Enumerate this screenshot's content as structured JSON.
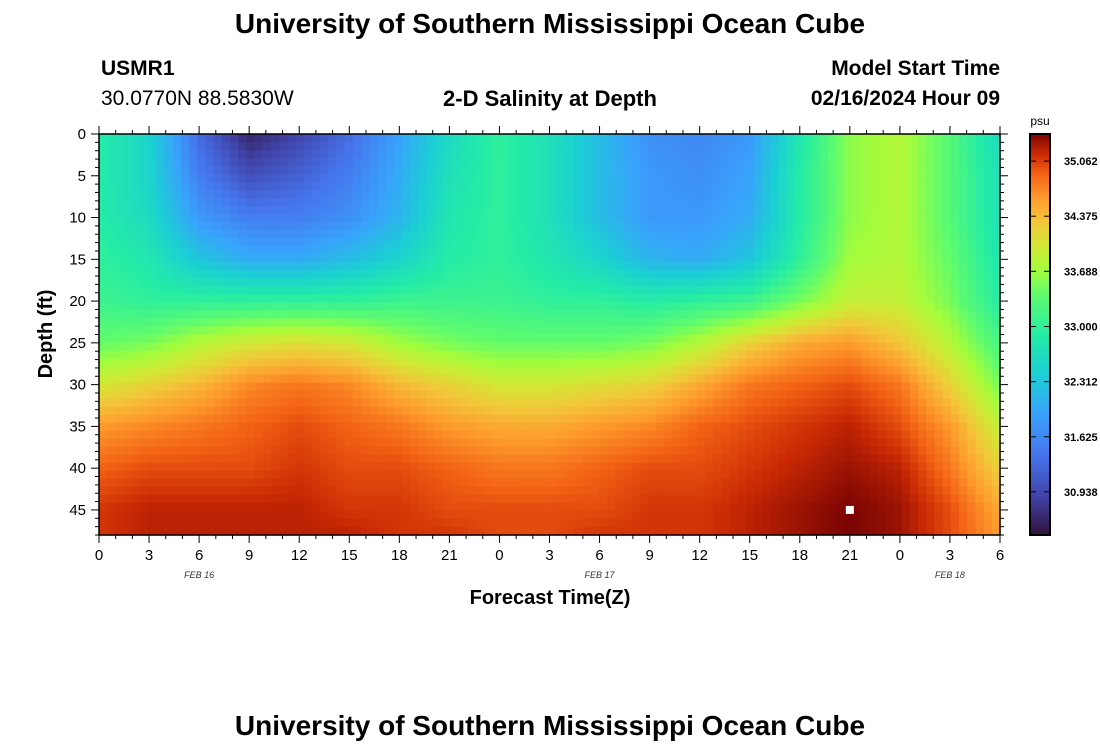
{
  "header": {
    "title": "University of Southern Mississippi Ocean Cube",
    "station_id": "USMR1",
    "coords": "30.0770N  88.5830W",
    "plot_title": "2-D Salinity at Depth",
    "model_label": "Model Start Time",
    "model_time": "02/16/2024 Hour 09"
  },
  "footer": {
    "title": "University of Southern Mississippi Ocean Cube"
  },
  "chart_data": {
    "type": "heatmap",
    "title": "2-D Salinity at Depth",
    "xlabel": "Forecast Time(Z)",
    "ylabel": "Depth (ft)",
    "x_tick_labels": [
      "0",
      "3",
      "6",
      "9",
      "12",
      "15",
      "18",
      "21",
      "0",
      "3",
      "6",
      "9",
      "12",
      "15",
      "18",
      "21",
      "0",
      "3",
      "6"
    ],
    "x_range_hours": [
      0,
      54
    ],
    "date_labels": [
      {
        "label": "FEB 16",
        "hour": 6
      },
      {
        "label": "FEB 17",
        "hour": 30
      },
      {
        "label": "FEB 18",
        "hour": 51
      }
    ],
    "y_ticks": [
      0,
      5,
      10,
      15,
      20,
      25,
      30,
      35,
      40,
      45
    ],
    "ylim": [
      0,
      48
    ],
    "y_inverted": true,
    "colorbar": {
      "unit": "psu",
      "ticks": [
        "35.062",
        "34.375",
        "33.688",
        "33.000",
        "32.312",
        "31.625",
        "30.938"
      ],
      "range": [
        30.4,
        35.4
      ]
    },
    "marker": {
      "hour": 45,
      "depth_ft": 45,
      "color": "#ffffff"
    },
    "salinity_psu": {
      "columns_hour": [
        0,
        3,
        6,
        9,
        12,
        15,
        18,
        21,
        24,
        27,
        30,
        33,
        36,
        39,
        42,
        45,
        48,
        51,
        54
      ],
      "rows_depth_ft": [
        0,
        5,
        10,
        15,
        20,
        25,
        30,
        35,
        40,
        45,
        48
      ],
      "values": [
        [
          32.9,
          32.5,
          31.3,
          30.6,
          30.9,
          31.3,
          31.9,
          32.6,
          33.0,
          32.7,
          32.2,
          31.7,
          31.6,
          31.8,
          32.8,
          33.6,
          33.8,
          33.3,
          32.6
        ],
        [
          32.9,
          32.5,
          31.5,
          31.0,
          31.2,
          31.5,
          32.0,
          32.7,
          33.0,
          32.7,
          32.2,
          31.8,
          31.7,
          31.9,
          32.9,
          33.6,
          33.8,
          33.3,
          32.7
        ],
        [
          32.9,
          32.6,
          31.8,
          31.5,
          31.5,
          31.7,
          32.1,
          32.8,
          33.0,
          32.7,
          32.2,
          31.8,
          31.8,
          32.0,
          32.9,
          33.6,
          33.8,
          33.3,
          32.7
        ],
        [
          33.0,
          32.8,
          32.3,
          32.0,
          32.0,
          32.2,
          32.5,
          32.9,
          33.0,
          32.8,
          32.5,
          32.1,
          32.0,
          32.3,
          33.0,
          33.7,
          33.8,
          33.4,
          32.8
        ],
        [
          33.1,
          33.0,
          33.0,
          33.0,
          33.0,
          33.0,
          33.1,
          33.1,
          33.1,
          33.0,
          33.0,
          32.9,
          33.0,
          33.1,
          33.5,
          33.9,
          33.9,
          33.5,
          32.9
        ],
        [
          33.4,
          33.5,
          33.8,
          34.0,
          34.1,
          34.0,
          33.7,
          33.5,
          33.4,
          33.4,
          33.4,
          33.5,
          33.8,
          34.2,
          34.5,
          34.6,
          34.3,
          33.8,
          33.2
        ],
        [
          34.0,
          34.2,
          34.4,
          34.7,
          34.8,
          34.7,
          34.4,
          34.2,
          34.0,
          34.0,
          34.1,
          34.2,
          34.5,
          34.8,
          34.9,
          35.0,
          34.8,
          34.2,
          33.5
        ],
        [
          34.6,
          34.7,
          34.8,
          34.9,
          35.0,
          34.9,
          34.8,
          34.6,
          34.5,
          34.5,
          34.6,
          34.7,
          34.9,
          35.0,
          35.1,
          35.2,
          35.0,
          34.6,
          33.9
        ],
        [
          34.9,
          35.0,
          35.0,
          35.0,
          35.1,
          35.0,
          35.0,
          34.9,
          34.8,
          34.8,
          34.9,
          35.0,
          35.0,
          35.1,
          35.2,
          35.3,
          35.2,
          34.8,
          34.2
        ],
        [
          35.1,
          35.2,
          35.2,
          35.2,
          35.2,
          35.1,
          35.1,
          35.0,
          35.0,
          35.0,
          35.0,
          35.1,
          35.1,
          35.2,
          35.3,
          35.4,
          35.3,
          35.0,
          34.5
        ],
        [
          35.1,
          35.2,
          35.2,
          35.2,
          35.2,
          35.2,
          35.1,
          35.1,
          35.0,
          35.0,
          35.1,
          35.1,
          35.1,
          35.2,
          35.3,
          35.4,
          35.3,
          35.0,
          34.6
        ]
      ]
    }
  }
}
